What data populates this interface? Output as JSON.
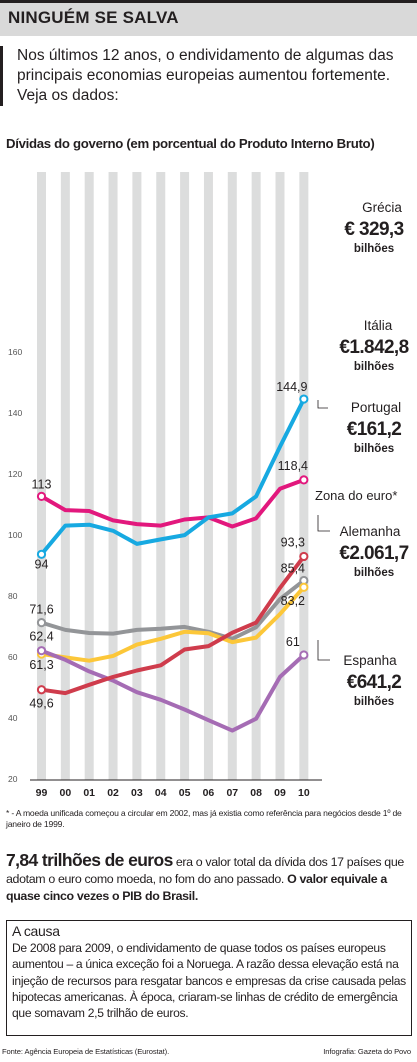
{
  "header": {
    "title": "NINGUÉM SE SALVA"
  },
  "intro": "Nos últimos 12 anos, o endividamento de algumas das principais economias europeias aumentou fortemente. Veja os dados:",
  "colors": {
    "Grécia": "#17a9e1",
    "Itália": "#e2187d",
    "Portugal": "#cf3c4c",
    "Zona do euro": "#939598",
    "Alemanha": "#fcc739",
    "Espanha": "#a56cb4",
    "grid": "#dcdddd",
    "text": "#231f20"
  },
  "chart_data": {
    "type": "line",
    "title": "Dívidas do governo (em porcentual do Produto Interno Bruto)",
    "x": [
      "99",
      "00",
      "01",
      "02",
      "03",
      "04",
      "05",
      "06",
      "07",
      "08",
      "09",
      "10"
    ],
    "ylim": [
      20,
      160
    ],
    "yticks": [
      "20",
      "40",
      "60",
      "80",
      "100",
      "120",
      "140",
      "160"
    ],
    "grid": true,
    "series": [
      {
        "name": "Grécia",
        "values": [
          94,
          103.4,
          103.7,
          101.7,
          97.4,
          98.9,
          100.3,
          106.1,
          107.4,
          113.0,
          129.3,
          144.9
        ],
        "start_label": "94",
        "end_label": "144,9",
        "amount": "€ 329,3",
        "unit": "bilhões"
      },
      {
        "name": "Itália",
        "values": [
          113,
          108.5,
          108.2,
          105.1,
          103.9,
          103.4,
          105.4,
          106.1,
          103.1,
          105.8,
          115.5,
          118.4
        ],
        "start_label": "113",
        "end_label": "118,4",
        "amount": "€1.842,8",
        "unit": "bilhões"
      },
      {
        "name": "Portugal",
        "values": [
          49.6,
          48.5,
          51.2,
          53.8,
          55.9,
          57.6,
          62.8,
          63.9,
          68.3,
          71.6,
          83.0,
          93.3
        ],
        "start_label": "49,6",
        "end_label": "93,3",
        "amount": "€161,2",
        "unit": "bilhões"
      },
      {
        "name": "Zona do euro",
        "values": [
          71.6,
          69.2,
          68.2,
          68.0,
          69.2,
          69.6,
          70.2,
          68.6,
          66.3,
          70.1,
          79.3,
          85.4
        ],
        "start_label": "71,6",
        "end_label": "85,4",
        "legend": "Zona do euro*"
      },
      {
        "name": "Alemanha",
        "values": [
          61.3,
          60.2,
          59.1,
          60.7,
          64.4,
          66.3,
          68.6,
          68.1,
          65.2,
          66.7,
          74.4,
          83.2
        ],
        "start_label": "61,3",
        "end_label": "83,2",
        "amount": "€2.061,7",
        "unit": "bilhões"
      },
      {
        "name": "Espanha",
        "values": [
          62.4,
          59.4,
          55.6,
          52.6,
          48.8,
          46.3,
          43.1,
          39.6,
          36.2,
          40.1,
          53.8,
          61
        ],
        "start_label": "62,4",
        "end_label": "61",
        "amount": "€641,2",
        "unit": "bilhões"
      }
    ]
  },
  "note": "* - A moeda unificada começou a circular em 2002, mas já existia como referência para negócios desde 1º de janeiro de 1999.",
  "fact": {
    "big": "7,84 trilhões de euros",
    "text1": " era o valor total da dívida dos 17 países que adotam o euro como moeda, no fom do ano passado. ",
    "bold": "O valor equivale a quase cinco vezes o PIB do Brasil."
  },
  "box": {
    "title": "A causa",
    "text": "De 2008 para 2009, o endividamento de quase todos os países europeus aumentou – a única exceção foi a Noruega. A razão dessa elevação está na injeção de recursos para resgatar bancos e empresas da crise causada pelas hipotecas americanas. À época, criaram-se linhas de crédito de emergência que somavam 2,5 trilhão de euros."
  },
  "footer": {
    "source": "Fonte: Agência Europeia de Estatísticas (Eurostat).",
    "credit": "Infografia: Gazeta do Povo"
  }
}
